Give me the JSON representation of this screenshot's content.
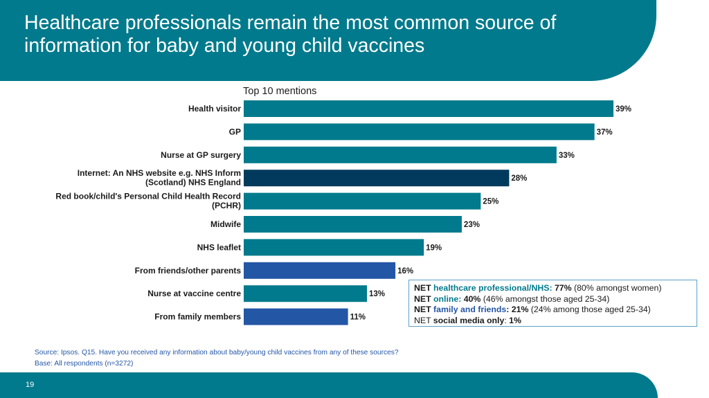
{
  "colors": {
    "header_bg": "#007a8c",
    "footer_bg": "#007a8c",
    "teal_bar": "#007a8c",
    "navy_bar": "#013a5c",
    "blue_bar": "#2456a6",
    "net_teal_text": "#007a8c",
    "net_blue_text": "#2456a6",
    "source_text": "#2456a6"
  },
  "header": {
    "title": "Healthcare professionals remain the most common source of information for baby and young child vaccines"
  },
  "chart_data": {
    "type": "bar",
    "orientation": "horizontal",
    "title": "Top 10 mentions",
    "categories": [
      "Health visitor",
      "GP",
      "Nurse at GP surgery",
      "Internet: An NHS website e.g. NHS Inform (Scotland) NHS England",
      "Red book/child's Personal Child Health Record (PCHR)",
      "Midwife",
      "NHS leaflet",
      "From friends/other parents",
      "Nurse at vaccine centre",
      "From family members"
    ],
    "category_lines": [
      [
        "Health visitor"
      ],
      [
        "GP"
      ],
      [
        "Nurse at GP surgery"
      ],
      [
        "Internet: An NHS website e.g. NHS Inform",
        "(Scotland) NHS England"
      ],
      [
        "Red book/child's Personal Child Health Record",
        "(PCHR)"
      ],
      [
        "Midwife"
      ],
      [
        "NHS leaflet"
      ],
      [
        "From friends/other parents"
      ],
      [
        "Nurse at vaccine centre"
      ],
      [
        "From family members"
      ]
    ],
    "values": [
      39,
      37,
      33,
      28,
      25,
      23,
      19,
      16,
      13,
      11
    ],
    "value_labels": [
      "39%",
      "37%",
      "33%",
      "28%",
      "25%",
      "23%",
      "19%",
      "16%",
      "13%",
      "11%"
    ],
    "bar_colors": [
      "#007a8c",
      "#007a8c",
      "#007a8c",
      "#013a5c",
      "#007a8c",
      "#007a8c",
      "#007a8c",
      "#2456a6",
      "#007a8c",
      "#2456a6"
    ],
    "xlim": [
      0,
      39
    ],
    "grid": false,
    "legend": "none"
  },
  "net_box": {
    "line1": {
      "prefix": "NET ",
      "label": "healthcare professional/NHS:",
      "value": " 77%",
      "note": " (80% amongst women)"
    },
    "line2": {
      "prefix": "NET ",
      "label": "online:",
      "value": " 40%",
      "note": " (46% amongst those aged 25-34)"
    },
    "line3": {
      "prefix": "NET ",
      "label": "family and friends",
      "colon": ":",
      "value": " 21%",
      "note": " (24% among those aged 25-34)"
    },
    "line4": {
      "prefix": "NET ",
      "label": "social media only",
      "colon": ": ",
      "value": "1%"
    }
  },
  "source": {
    "line1": "Source: Ipsos. Q15. Have you received any information about baby/young child vaccines from any of these sources?",
    "line2": "Base: All respondents (n=3272)"
  },
  "page_number": "19"
}
